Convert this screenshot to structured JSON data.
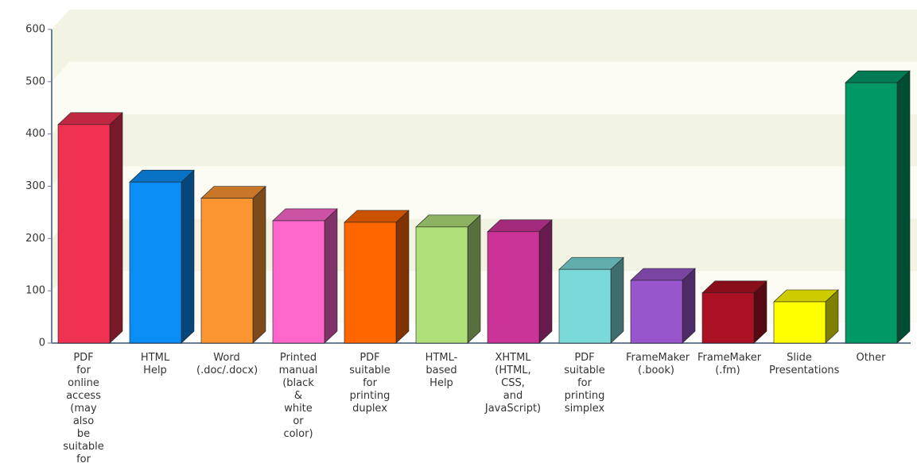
{
  "chart_data": {
    "type": "bar3d",
    "categories": [
      "PDF for online access (may also be suitable for printing)",
      "HTML Help",
      "Word (.doc/.docx)",
      "Printed manual (black & white or color)",
      "PDF suitable for printing duplex",
      "HTML-based Help",
      "XHTML (HTML, CSS, and JavaScript)",
      "PDF suitable for printing simplex",
      "FrameMaker (.book)",
      "FrameMaker (.fm)",
      "Slide Presentations",
      "Other"
    ],
    "values": [
      418,
      308,
      277,
      234,
      231,
      222,
      213,
      141,
      120,
      96,
      79,
      498
    ],
    "colors": [
      "#f03252",
      "#0a8ef5",
      "#fa9532",
      "#ff66cc",
      "#ff6600",
      "#b0e07a",
      "#cc3399",
      "#7adada",
      "#9955cc",
      "#aa1122",
      "#ffff00",
      "#009966"
    ],
    "ylim": [
      0,
      600
    ],
    "yticks": [
      0,
      100,
      200,
      300,
      400,
      500,
      600
    ],
    "grid": true
  }
}
